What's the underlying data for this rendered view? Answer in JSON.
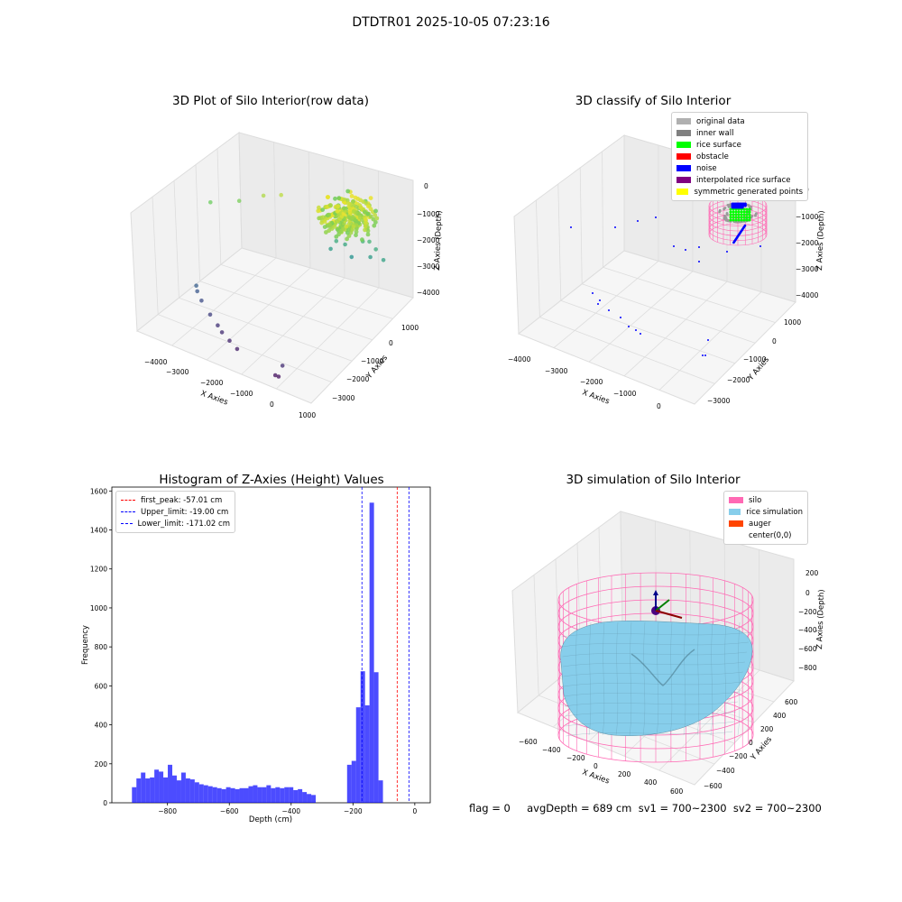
{
  "figure": {
    "title": "DTDTR01 2025-10-05 07:23:16",
    "footer": "flag = 0     avgDepth = 689 cm  sv1 = 700~2300  sv2 = 700~2300"
  },
  "colors": {
    "pane": "#f2f2f2",
    "grid": "#dcdcdc",
    "hist_bar": "#0000ff",
    "peak_line": "#ff0000",
    "limit_line": "#0000ff",
    "silo": "#ff69b4",
    "rice": "#87ceeb",
    "auger": "#ff4500"
  },
  "chart_data": [
    {
      "type": "scatter",
      "title": "3D Plot of Silo Interior(row data)",
      "xlabel": "X Axies",
      "ylabel": "Y Axies",
      "zlabel": "Z Axies (Depth)",
      "x_ticks": [
        "−4000",
        "−3000",
        "−2000",
        "−1000",
        "0",
        "1000"
      ],
      "y_ticks": [
        "1000",
        "0",
        "−1000",
        "−2000",
        "−3000"
      ],
      "z_ticks": [
        "0",
        "−1000",
        "−2000",
        "−3000",
        "−4000"
      ],
      "colormap": "viridis",
      "points": [
        {
          "x": -3800,
          "y": -800,
          "z": -800
        },
        {
          "x": -3200,
          "y": -400,
          "z": -700
        },
        {
          "x": -2600,
          "y": -200,
          "z": -300
        },
        {
          "x": -2200,
          "y": 0,
          "z": -200
        },
        {
          "x": -3400,
          "y": -2000,
          "z": -3100
        },
        {
          "x": -3300,
          "y": -2100,
          "z": -3200
        },
        {
          "x": -3100,
          "y": -2200,
          "z": -3400
        },
        {
          "x": -2700,
          "y": -2400,
          "z": -3600
        },
        {
          "x": -2400,
          "y": -2500,
          "z": -3800
        },
        {
          "x": -2200,
          "y": -2600,
          "z": -3900
        },
        {
          "x": -1900,
          "y": -2700,
          "z": -4000
        },
        {
          "x": -1600,
          "y": -2800,
          "z": -4100
        },
        {
          "x": -300,
          "y": -3000,
          "z": -4300
        },
        {
          "x": -200,
          "y": -3000,
          "z": -4300
        },
        {
          "x": -150,
          "y": -2900,
          "z": -3900
        },
        {
          "x": -800,
          "y": 400,
          "z": -1600
        },
        {
          "x": -600,
          "y": 500,
          "z": -1700
        },
        {
          "x": -400,
          "y": 500,
          "z": -2100
        },
        {
          "x": -200,
          "y": 700,
          "z": -1500
        },
        {
          "x": 0,
          "y": 700,
          "z": -1400
        },
        {
          "x": 100,
          "y": 600,
          "z": -1900
        },
        {
          "x": 200,
          "y": 700,
          "z": -1600
        },
        {
          "x": 500,
          "y": 600,
          "z": -1800
        },
        {
          "x": -900,
          "y": 300,
          "z": -1900
        }
      ]
    },
    {
      "type": "scatter",
      "title": "3D classify of Silo Interior",
      "xlabel": "X Axies",
      "ylabel": "Y Axies",
      "zlabel": "Z Axies (Depth)",
      "x_ticks": [
        "−4000",
        "−3000",
        "−2000",
        "−1000",
        "0"
      ],
      "y_ticks": [
        "1000",
        "0",
        "−1000",
        "−2000",
        "−3000"
      ],
      "z_ticks": [
        "0",
        "−1000",
        "−2000",
        "−3000",
        "−4000"
      ],
      "legend": [
        {
          "label": "original data",
          "color": "#b0b0b0"
        },
        {
          "label": "inner wall",
          "color": "#808080"
        },
        {
          "label": "rice surface",
          "color": "#00ff00"
        },
        {
          "label": "obstacle",
          "color": "#ff0000"
        },
        {
          "label": "noise",
          "color": "#0000ff"
        },
        {
          "label": "interpolated rice surface",
          "color": "#800080"
        },
        {
          "label": "symmetric generated points",
          "color": "#ffff00"
        }
      ],
      "legend_position": "top-right"
    },
    {
      "type": "bar",
      "title": "Histogram of Z-Axies (Height) Values",
      "xlabel": "Depth (cm)",
      "ylabel": "Frequency",
      "xlim": [
        -980,
        50
      ],
      "ylim": [
        0,
        1620
      ],
      "x_ticks": [
        -800,
        -600,
        -400,
        -200,
        0
      ],
      "x_tick_labels": [
        "−800",
        "−600",
        "−400",
        "−200",
        "0"
      ],
      "y_ticks": [
        0,
        200,
        400,
        600,
        800,
        1000,
        1200,
        1400,
        1600
      ],
      "bin_width": 14.5,
      "bin_start": -915,
      "counts": [
        80,
        125,
        155,
        125,
        130,
        170,
        160,
        130,
        195,
        140,
        115,
        155,
        125,
        120,
        105,
        95,
        90,
        85,
        80,
        75,
        70,
        80,
        75,
        70,
        75,
        75,
        85,
        90,
        80,
        80,
        90,
        75,
        80,
        75,
        80,
        80,
        65,
        70,
        55,
        45,
        40,
        0,
        0,
        0,
        0,
        0,
        0,
        0,
        195,
        215,
        490,
        675,
        500,
        1540,
        670,
        115
      ],
      "lines": [
        {
          "label": "first_peak: -57.01 cm",
          "x": -57.01,
          "color": "#ff0000"
        },
        {
          "label": "Upper_limit: -19.00 cm",
          "x": -19.0,
          "color": "#0000ff"
        },
        {
          "label": "Lower_limit: -171.02 cm",
          "x": -171.02,
          "color": "#0000ff"
        }
      ],
      "legend_position": "top-left"
    },
    {
      "type": "surface",
      "title": "3D simulation of Silo Interior",
      "xlabel": "X Axies",
      "ylabel": "Y Axies",
      "zlabel": "Z Axies (Depth)",
      "x_ticks": [
        "−600",
        "−400",
        "−200",
        "0",
        "200",
        "400",
        "600"
      ],
      "y_ticks": [
        "600",
        "400",
        "200",
        "0",
        "−200",
        "−400",
        "−600"
      ],
      "z_ticks": [
        "200",
        "0",
        "−200",
        "−400",
        "−600",
        "−800"
      ],
      "legend": [
        {
          "label": "silo",
          "color": "#ff69b4"
        },
        {
          "label": "rice simulation",
          "color": "#87ceeb"
        },
        {
          "label": "auger",
          "color": "#ff4500"
        },
        {
          "label": "center(0,0)",
          "color": ""
        }
      ],
      "legend_position": "top-right"
    }
  ]
}
